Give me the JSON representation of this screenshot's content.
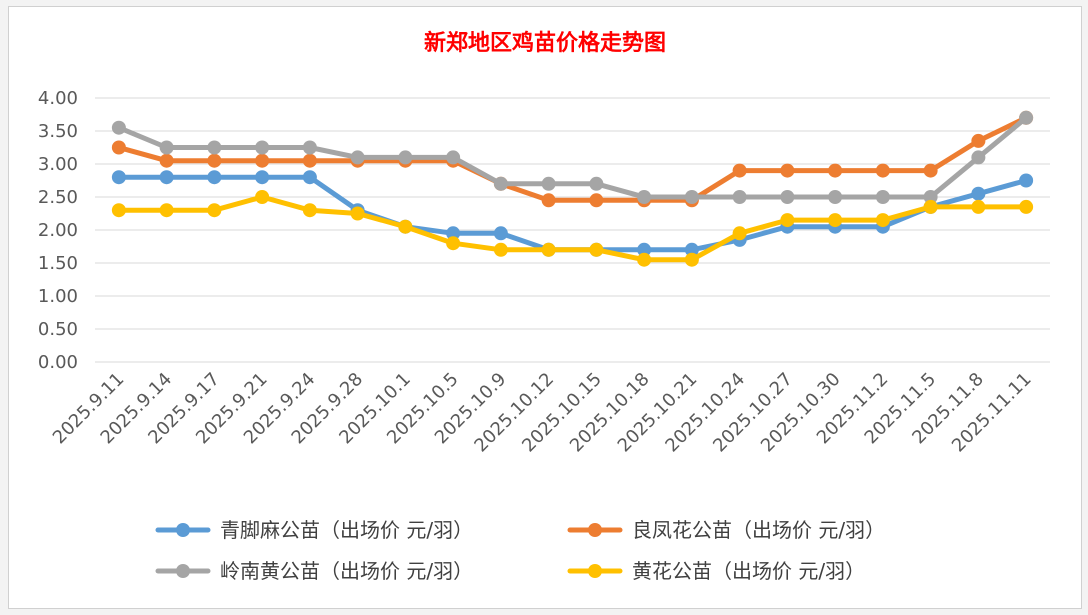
{
  "chart_data": {
    "type": "line",
    "title": "新郑地区鸡苗价格走势图",
    "title_color": "#ff0000",
    "xlabel": "",
    "ylabel": "",
    "ylim": [
      0,
      4
    ],
    "y_ticks": [
      "0.00",
      "0.50",
      "1.00",
      "1.50",
      "2.00",
      "2.50",
      "3.00",
      "3.50",
      "4.00"
    ],
    "y_tick_values": [
      0,
      0.5,
      1,
      1.5,
      2,
      2.5,
      3,
      3.5,
      4
    ],
    "grid": true,
    "legend_position": "bottom",
    "categories": [
      "2025.9.11",
      "2025.9.14",
      "2025.9.17",
      "2025.9.21",
      "2025.9.24",
      "2025.9.28",
      "2025.10.1",
      "2025.10.5",
      "2025.10.9",
      "2025.10.12",
      "2025.10.15",
      "2025.10.18",
      "2025.10.21",
      "2025.10.24",
      "2025.10.27",
      "2025.10.30",
      "2025.11.2",
      "2025.11.5",
      "2025.11.8",
      "2025.11.11"
    ],
    "series": [
      {
        "name": "青脚麻公苗（出场价 元/羽）",
        "color": "#5b9bd5",
        "values": [
          2.8,
          2.8,
          2.8,
          2.8,
          2.8,
          2.3,
          2.05,
          1.95,
          1.95,
          1.7,
          1.7,
          1.7,
          1.7,
          1.85,
          2.05,
          2.05,
          2.05,
          2.35,
          2.55,
          2.75
        ]
      },
      {
        "name": "良凤花公苗（出场价 元/羽）",
        "color": "#ed7d31",
        "values": [
          3.25,
          3.05,
          3.05,
          3.05,
          3.05,
          3.05,
          3.05,
          3.05,
          2.7,
          2.45,
          2.45,
          2.45,
          2.45,
          2.9,
          2.9,
          2.9,
          2.9,
          2.9,
          3.35,
          3.7
        ]
      },
      {
        "name": "岭南黄公苗（出场价 元/羽）",
        "color": "#a5a5a5",
        "values": [
          3.55,
          3.25,
          3.25,
          3.25,
          3.25,
          3.1,
          3.1,
          3.1,
          2.7,
          2.7,
          2.7,
          2.5,
          2.5,
          2.5,
          2.5,
          2.5,
          2.5,
          2.5,
          3.1,
          3.7
        ]
      },
      {
        "name": "黄花公苗（出场价 元/羽）",
        "color": "#ffc000",
        "values": [
          2.3,
          2.3,
          2.3,
          2.5,
          2.3,
          2.25,
          2.05,
          1.8,
          1.7,
          1.7,
          1.7,
          1.55,
          1.55,
          1.95,
          2.15,
          2.15,
          2.15,
          2.35,
          2.35,
          2.35
        ]
      }
    ]
  }
}
